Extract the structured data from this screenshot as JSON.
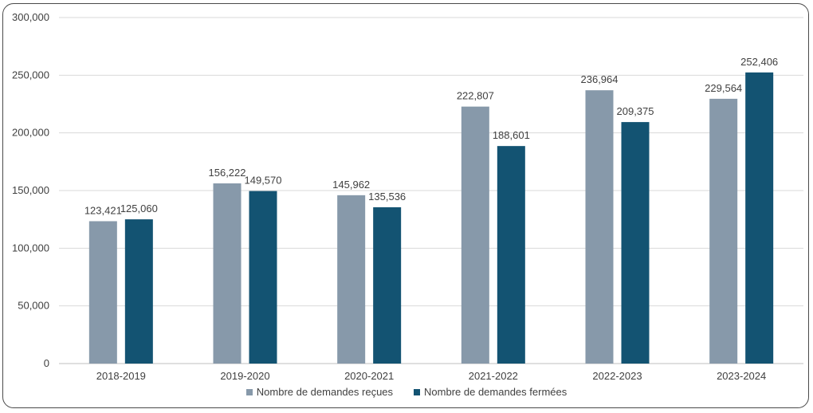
{
  "chart_data": {
    "type": "bar",
    "categories": [
      "2018-2019",
      "2019-2020",
      "2020-2021",
      "2021-2022",
      "2022-2023",
      "2023-2024"
    ],
    "series": [
      {
        "name": "Nombre de demandes reçues",
        "color": "#8799aa",
        "values": [
          123421,
          156222,
          145962,
          222807,
          236964,
          229564
        ],
        "labels": [
          "123,421",
          "156,222",
          "145,962",
          "222,807",
          "236,964",
          "229,564"
        ]
      },
      {
        "name": "Nombre de demandes fermées",
        "color": "#135372",
        "values": [
          125060,
          149570,
          135536,
          188601,
          209375,
          252406
        ],
        "labels": [
          "125,060",
          "149,570",
          "135,536",
          "188,601",
          "209,375",
          "252,406"
        ]
      }
    ],
    "yticks": [
      "0",
      "50,000",
      "100,000",
      "150,000",
      "200,000",
      "250,000",
      "300,000"
    ],
    "ylim": [
      0,
      300000
    ],
    "grid": true,
    "legend_position": "bottom"
  }
}
